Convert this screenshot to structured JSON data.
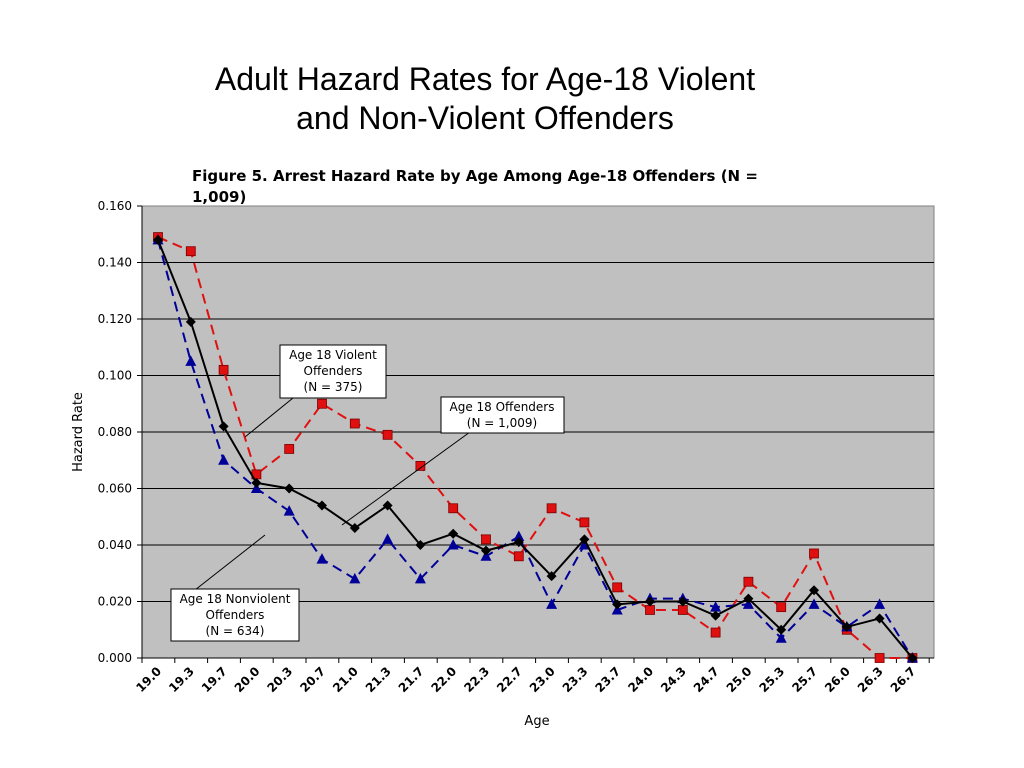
{
  "slide": {
    "title_line1": "Adult Hazard Rates for Age-18 Violent",
    "title_line2": "and Non-Violent Offenders"
  },
  "chart_data": {
    "type": "line",
    "title_line1": "Figure 5.  Arrest Hazard Rate by Age Among Age-18 Offenders (N =",
    "title_line2": "1,009)",
    "xlabel": "Age",
    "ylabel": "Hazard Rate",
    "ylim": [
      0,
      0.16
    ],
    "yticks": [
      "0.000",
      "0.020",
      "0.040",
      "0.060",
      "0.080",
      "0.100",
      "0.120",
      "0.140",
      "0.160"
    ],
    "xtick_labels": [
      "19.0",
      "19.3",
      "19.7",
      "20.0",
      "20.3",
      "20.7",
      "21.0",
      "21.3",
      "21.7",
      "22.0",
      "22.3",
      "22.7",
      "23.0",
      "23.3",
      "23.7",
      "24.0",
      "24.3",
      "24.7",
      "25.0",
      "25.3",
      "25.7",
      "26.0",
      "26.3",
      "26.7"
    ],
    "grid": "horizontal",
    "plot_background": "#c0c0c0",
    "series": [
      {
        "callout": [
          "Age 18 Offenders",
          "(N = 1,009)"
        ],
        "color": "#000000",
        "marker": "diamond",
        "dash": "solid",
        "values": [
          0.148,
          0.119,
          0.082,
          0.062,
          0.06,
          0.054,
          0.046,
          0.054,
          0.04,
          0.044,
          0.038,
          0.041,
          0.029,
          0.042,
          0.019,
          0.02,
          0.02,
          0.015,
          0.021,
          0.01,
          0.024,
          0.011,
          0.014,
          0.0
        ]
      },
      {
        "callout": [
          "Age 18 Violent",
          "Offenders",
          "(N = 375)"
        ],
        "color": "#e01010",
        "marker": "square",
        "dash": "dashed",
        "values": [
          0.149,
          0.144,
          0.102,
          0.065,
          0.074,
          0.09,
          0.083,
          0.079,
          0.068,
          0.053,
          0.042,
          0.036,
          0.053,
          0.048,
          0.025,
          0.017,
          0.017,
          0.009,
          0.027,
          0.018,
          0.037,
          0.01,
          0.0,
          0.0
        ]
      },
      {
        "callout": [
          "Age 18 Nonviolent",
          "Offenders",
          "(N = 634)"
        ],
        "color": "#000099",
        "marker": "triangle",
        "dash": "dashed",
        "values": [
          0.148,
          0.105,
          0.07,
          0.06,
          0.052,
          0.035,
          0.028,
          0.042,
          0.028,
          0.04,
          0.036,
          0.043,
          0.019,
          0.04,
          0.017,
          0.021,
          0.021,
          0.018,
          0.019,
          0.007,
          0.019,
          0.011,
          0.019,
          0.0
        ]
      }
    ]
  }
}
